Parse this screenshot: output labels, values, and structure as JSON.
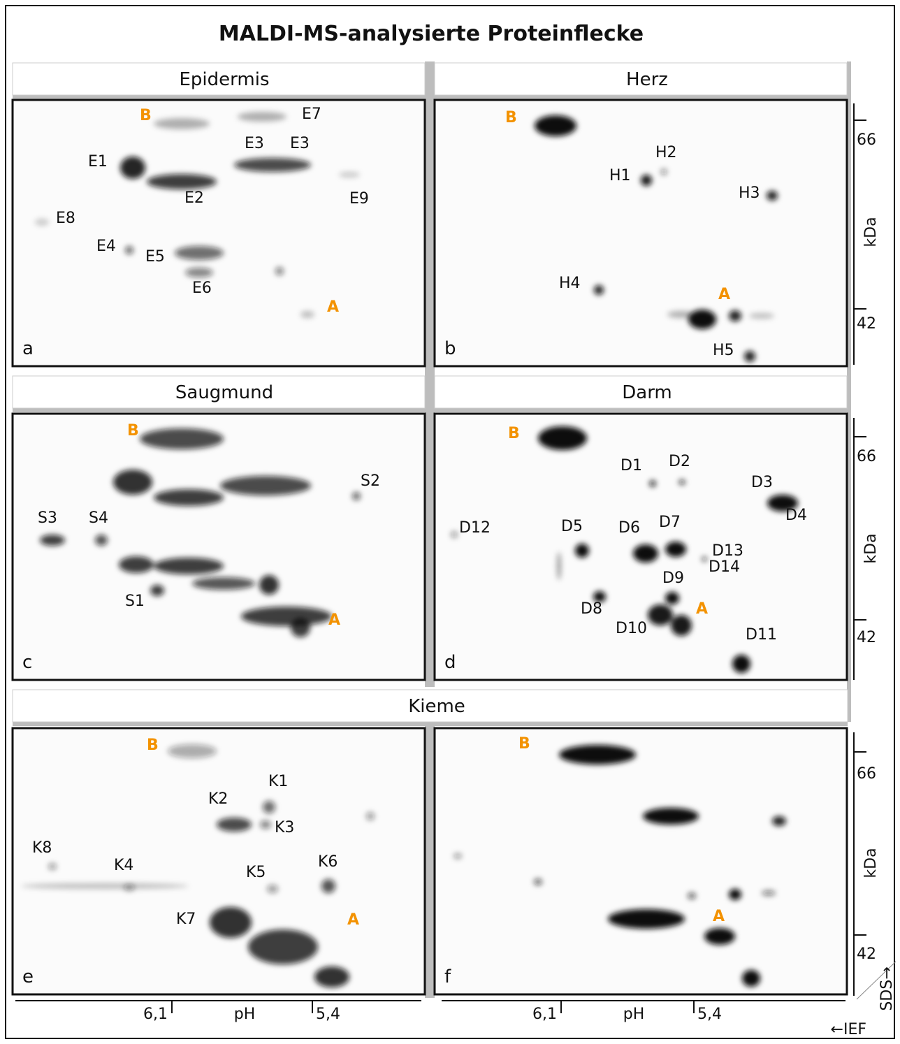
{
  "title": "MALDI-MS-analysierte Proteinflecke",
  "sections": [
    "Epidermis",
    "Herz",
    "Saugmund",
    "Darm",
    "Kieme"
  ],
  "panels": [
    {
      "letter": "a",
      "labels": [
        "B",
        "E7",
        "E1",
        "E3",
        "E3",
        "E2",
        "E9",
        "E8",
        "E4",
        "E5",
        "E6",
        "A"
      ]
    },
    {
      "letter": "b",
      "labels": [
        "B",
        "H2",
        "H1",
        "H3",
        "H4",
        "A",
        "H5"
      ]
    },
    {
      "letter": "c",
      "labels": [
        "B",
        "S2",
        "S3",
        "S4",
        "S1",
        "A"
      ]
    },
    {
      "letter": "d",
      "labels": [
        "B",
        "D1",
        "D2",
        "D3",
        "D4",
        "D12",
        "D5",
        "D6",
        "D7",
        "D13",
        "D14",
        "D9",
        "D8",
        "A",
        "D10",
        "D11"
      ]
    },
    {
      "letter": "e",
      "labels": [
        "B",
        "K1",
        "K2",
        "K3",
        "K8",
        "K4",
        "K5",
        "K6",
        "K7",
        "A"
      ]
    },
    {
      "letter": "f",
      "labels": [
        "B",
        "A"
      ]
    }
  ],
  "mass_scale": {
    "unit": "kDa",
    "ticks": [
      "66",
      "42"
    ]
  },
  "ph_scale": {
    "label": "pH",
    "ticks": [
      "6,1",
      "5,4"
    ]
  },
  "sds_label": "SDS→",
  "ief_label": "←IEF"
}
